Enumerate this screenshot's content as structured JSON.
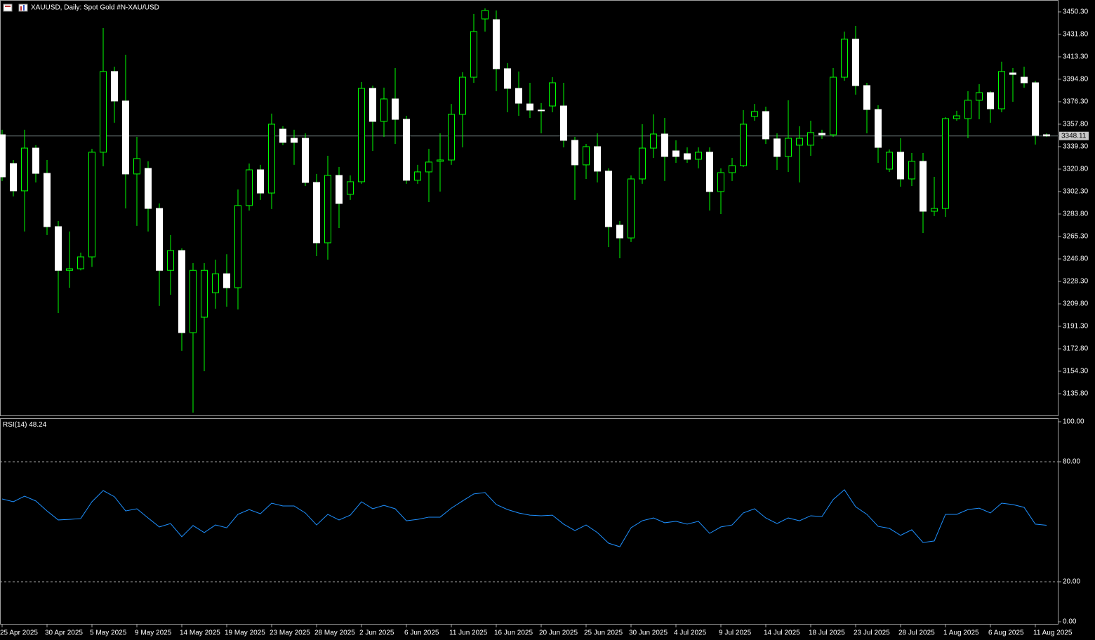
{
  "chart_data": [
    {
      "type": "candlestick",
      "title": "XAUUSD, Daily:  Spot Gold #N-XAU/USD",
      "categories": [
        "25 Apr 2025",
        null,
        null,
        null,
        "30 Apr 2025",
        null,
        null,
        null,
        "5 May 2025",
        null,
        null,
        null,
        "9 May 2025",
        null,
        null,
        null,
        "14 May 2025",
        null,
        null,
        null,
        "19 May 2025",
        null,
        null,
        null,
        "23 May 2025",
        null,
        null,
        null,
        "28 May 2025",
        null,
        null,
        null,
        "2 Jun 2025",
        null,
        null,
        null,
        "6 Jun 2025",
        null,
        null,
        null,
        "11 Jun 2025",
        null,
        null,
        null,
        "16 Jun 2025",
        null,
        null,
        null,
        "20 Jun 2025",
        null,
        null,
        null,
        "25 Jun 2025",
        null,
        null,
        null,
        "30 Jun 2025",
        null,
        null,
        null,
        "4 Jul 2025",
        null,
        null,
        null,
        "9 Jul 2025",
        null,
        null,
        null,
        "14 Jul 2025",
        null,
        null,
        null,
        "18 Jul 2025",
        null,
        null,
        null,
        "23 Jul 2025",
        null,
        null,
        null,
        "28 Jul 2025",
        null,
        null,
        null,
        "1 Aug 2025",
        null,
        null,
        null,
        "6 Aug 2025",
        null,
        null,
        null,
        "11 Aug 2025",
        null
      ],
      "open": [
        3349.1,
        3325.4,
        3302.9,
        3338.1,
        3317.3,
        3273.4,
        3237.4,
        3238.7,
        3248.5,
        3334.7,
        3401.2,
        3376.9,
        3316.8,
        3321.4,
        3288.4,
        3237.4,
        3253.7,
        3186.1,
        3198.8,
        3219.0,
        3234.6,
        3223.1,
        3290.8,
        3320.2,
        3301.1,
        3353.7,
        3346.2,
        3346.2,
        3309.8,
        3260.1,
        3315.6,
        3300.0,
        3310.4,
        3387.3,
        3360.1,
        3378.6,
        3361.8,
        3311.6,
        3318.5,
        3327.2,
        3328.3,
        3365.9,
        3396.5,
        3444.5,
        3443.9,
        3403.5,
        3387.3,
        3374.5,
        3369.4,
        3372.8,
        3372.8,
        3344.5,
        3324.3,
        3339.3,
        3319.1,
        3274.6,
        3264.1,
        3312.7,
        3338.1,
        3349.7,
        3335.8,
        3333.5,
        3328.9,
        3334.7,
        3302.3,
        3317.9,
        3323.7,
        3364.2,
        3368.2,
        3345.7,
        3331.2,
        3340.5,
        3340.5,
        3350.3,
        3349.1,
        3396.5,
        3427.8,
        3389.6,
        3369.9,
        3320.8,
        3334.7,
        3312.7,
        3327.2,
        3286.1,
        3288.4,
        3362.4,
        3362.4,
        3377.5,
        3383.8,
        3370.5,
        3400.0,
        3396.5,
        3391.9,
        3349.1
      ],
      "high": [
        3353.2,
        3328.3,
        3353.2,
        3340.5,
        3328.3,
        3278.0,
        3269.4,
        3252.0,
        3337.5,
        3437.0,
        3405.2,
        3415.0,
        3347.4,
        3327.2,
        3292.5,
        3266.5,
        3255.5,
        3243.3,
        3243.3,
        3246.2,
        3250.7,
        3304.0,
        3325.4,
        3324.3,
        3366.5,
        3356.1,
        3353.2,
        3350.3,
        3316.8,
        3331.8,
        3322.5,
        3315.6,
        3392.5,
        3389.6,
        3387.9,
        3404.0,
        3364.7,
        3324.3,
        3337.5,
        3350.3,
        3374.5,
        3400.6,
        3448.6,
        3453.2,
        3451.5,
        3408.1,
        3401.2,
        3391.9,
        3375.1,
        3396.5,
        3391.9,
        3347.4,
        3341.6,
        3350.3,
        3321.4,
        3278.0,
        3315.6,
        3357.8,
        3365.9,
        3363.0,
        3344.5,
        3338.7,
        3338.7,
        3338.7,
        3321.4,
        3330.0,
        3369.4,
        3374.5,
        3372.2,
        3350.3,
        3377.5,
        3356.1,
        3360.7,
        3353.2,
        3404.0,
        3434.1,
        3438.7,
        3391.9,
        3373.4,
        3337.0,
        3346.2,
        3334.1,
        3334.1,
        3314.4,
        3363.6,
        3368.8,
        3385.0,
        3390.8,
        3385.0,
        3409.3,
        3404.0,
        3405.2,
        3393.6,
        3350.3
      ],
      "low": [
        3311.0,
        3298.3,
        3269.4,
        3309.8,
        3266.5,
        3202.3,
        3223.1,
        3237.4,
        3240.3,
        3323.1,
        3359.0,
        3288.4,
        3274.0,
        3269.4,
        3208.1,
        3217.3,
        3171.1,
        3120.2,
        3154.3,
        3205.8,
        3207.5,
        3205.2,
        3286.7,
        3295.4,
        3287.9,
        3340.5,
        3324.3,
        3306.9,
        3249.1,
        3246.2,
        3272.2,
        3295.4,
        3308.7,
        3335.8,
        3347.4,
        3341.6,
        3308.7,
        3308.7,
        3293.6,
        3302.3,
        3324.3,
        3338.7,
        3391.9,
        3434.1,
        3385.0,
        3367.6,
        3364.7,
        3363.0,
        3350.3,
        3367.6,
        3338.7,
        3295.4,
        3312.7,
        3309.8,
        3256.6,
        3247.4,
        3260.7,
        3308.7,
        3330.0,
        3311.0,
        3326.0,
        3326.0,
        3321.4,
        3286.7,
        3283.8,
        3311.0,
        3322.5,
        3360.7,
        3341.6,
        3320.2,
        3318.5,
        3309.8,
        3331.8,
        3345.7,
        3347.4,
        3393.6,
        3382.1,
        3350.3,
        3326.0,
        3318.5,
        3306.3,
        3306.9,
        3268.2,
        3282.1,
        3281.5,
        3360.7,
        3346.2,
        3361.8,
        3359.0,
        3367.6,
        3376.3,
        3387.9,
        3341.0,
        3347.4
      ],
      "close": [
        3314.4,
        3302.9,
        3338.1,
        3317.3,
        3273.4,
        3237.4,
        3238.7,
        3248.5,
        3334.7,
        3401.2,
        3376.9,
        3316.8,
        3329.5,
        3288.4,
        3237.4,
        3253.7,
        3186.1,
        3237.4,
        3237.4,
        3234.6,
        3223.1,
        3290.8,
        3320.2,
        3301.1,
        3357.8,
        3342.8,
        3342.8,
        3309.8,
        3260.1,
        3315.6,
        3292.5,
        3310.4,
        3387.3,
        3360.1,
        3378.6,
        3361.8,
        3311.6,
        3318.5,
        3326.6,
        3328.3,
        3365.9,
        3396.5,
        3434.1,
        3451.5,
        3403.5,
        3387.3,
        3375.1,
        3369.4,
        3368.8,
        3391.9,
        3344.5,
        3324.3,
        3339.3,
        3319.1,
        3273.4,
        3264.1,
        3312.7,
        3338.1,
        3349.7,
        3331.2,
        3331.2,
        3328.9,
        3334.7,
        3302.3,
        3317.9,
        3323.7,
        3357.8,
        3368.2,
        3345.7,
        3331.2,
        3346.2,
        3346.2,
        3350.9,
        3349.1,
        3396.5,
        3427.8,
        3389.6,
        3369.9,
        3338.7,
        3334.7,
        3312.7,
        3327.2,
        3286.1,
        3288.4,
        3362.4,
        3364.7,
        3377.5,
        3383.8,
        3370.5,
        3401.2,
        3398.8,
        3391.9,
        3348.6,
        3348.11
      ],
      "up_color": "#000000",
      "down_color": "#ffffff",
      "wick_color": "#00ff00",
      "price_line_color": "#6a7a7a",
      "ylim": [
        3117.3,
        3460.1
      ],
      "yticks": [
        {
          "value": 3450.3,
          "label": "3450.30"
        },
        {
          "value": 3431.8,
          "label": "3431.80"
        },
        {
          "value": 3413.3,
          "label": "3413.30"
        },
        {
          "value": 3394.8,
          "label": "3394.80"
        },
        {
          "value": 3376.3,
          "label": "3376.30"
        },
        {
          "value": 3357.8,
          "label": "3357.80"
        },
        {
          "value": 3339.3,
          "label": "3339.30"
        },
        {
          "value": 3320.8,
          "label": "3320.80"
        },
        {
          "value": 3302.3,
          "label": "3302.30"
        },
        {
          "value": 3283.8,
          "label": "3283.80"
        },
        {
          "value": 3265.3,
          "label": "3265.30"
        },
        {
          "value": 3246.8,
          "label": "3246.80"
        },
        {
          "value": 3228.3,
          "label": "3228.30"
        },
        {
          "value": 3209.8,
          "label": "3209.80"
        },
        {
          "value": 3191.3,
          "label": "3191.30"
        },
        {
          "value": 3172.8,
          "label": "3172.80"
        },
        {
          "value": 3154.3,
          "label": "3154.30"
        },
        {
          "value": 3135.8,
          "label": "3135.80"
        }
      ]
    },
    {
      "type": "line",
      "title": "RSI(14)",
      "color": "#1e90ff",
      "values": [
        61.4,
        60.0,
        62.8,
        60.4,
        55.4,
        50.9,
        51.2,
        51.6,
        60.0,
        65.6,
        62.5,
        55.4,
        56.5,
        51.9,
        47.4,
        49.1,
        42.5,
        48.1,
        44.6,
        48.4,
        47.0,
        53.7,
        56.1,
        54.0,
        59.3,
        57.9,
        57.9,
        54.4,
        48.4,
        53.7,
        50.9,
        53.3,
        60.0,
        56.5,
        58.2,
        56.5,
        50.5,
        51.2,
        52.3,
        52.3,
        56.8,
        60.4,
        63.9,
        64.6,
        58.6,
        56.1,
        54.4,
        53.3,
        53.0,
        53.3,
        48.8,
        45.6,
        48.4,
        44.6,
        39.3,
        37.5,
        47.0,
        50.5,
        51.9,
        49.5,
        50.2,
        48.8,
        50.2,
        44.2,
        47.4,
        48.4,
        54.4,
        56.5,
        51.9,
        49.1,
        51.9,
        50.5,
        53.0,
        52.6,
        61.1,
        66.0,
        57.5,
        53.7,
        47.7,
        46.7,
        43.2,
        46.0,
        39.6,
        40.4,
        53.7,
        53.7,
        56.1,
        56.8,
        54.4,
        59.3,
        58.6,
        57.2,
        48.8,
        48.24
      ],
      "levels": [
        80,
        20
      ],
      "ylim": [
        -1.4,
        101.4
      ],
      "yticks": [
        {
          "value": 100,
          "label": "100.00"
        },
        {
          "value": 80,
          "label": "80.00"
        },
        {
          "value": 20,
          "label": "20.00"
        },
        {
          "value": 0,
          "label": "0.00"
        }
      ]
    }
  ]
}
